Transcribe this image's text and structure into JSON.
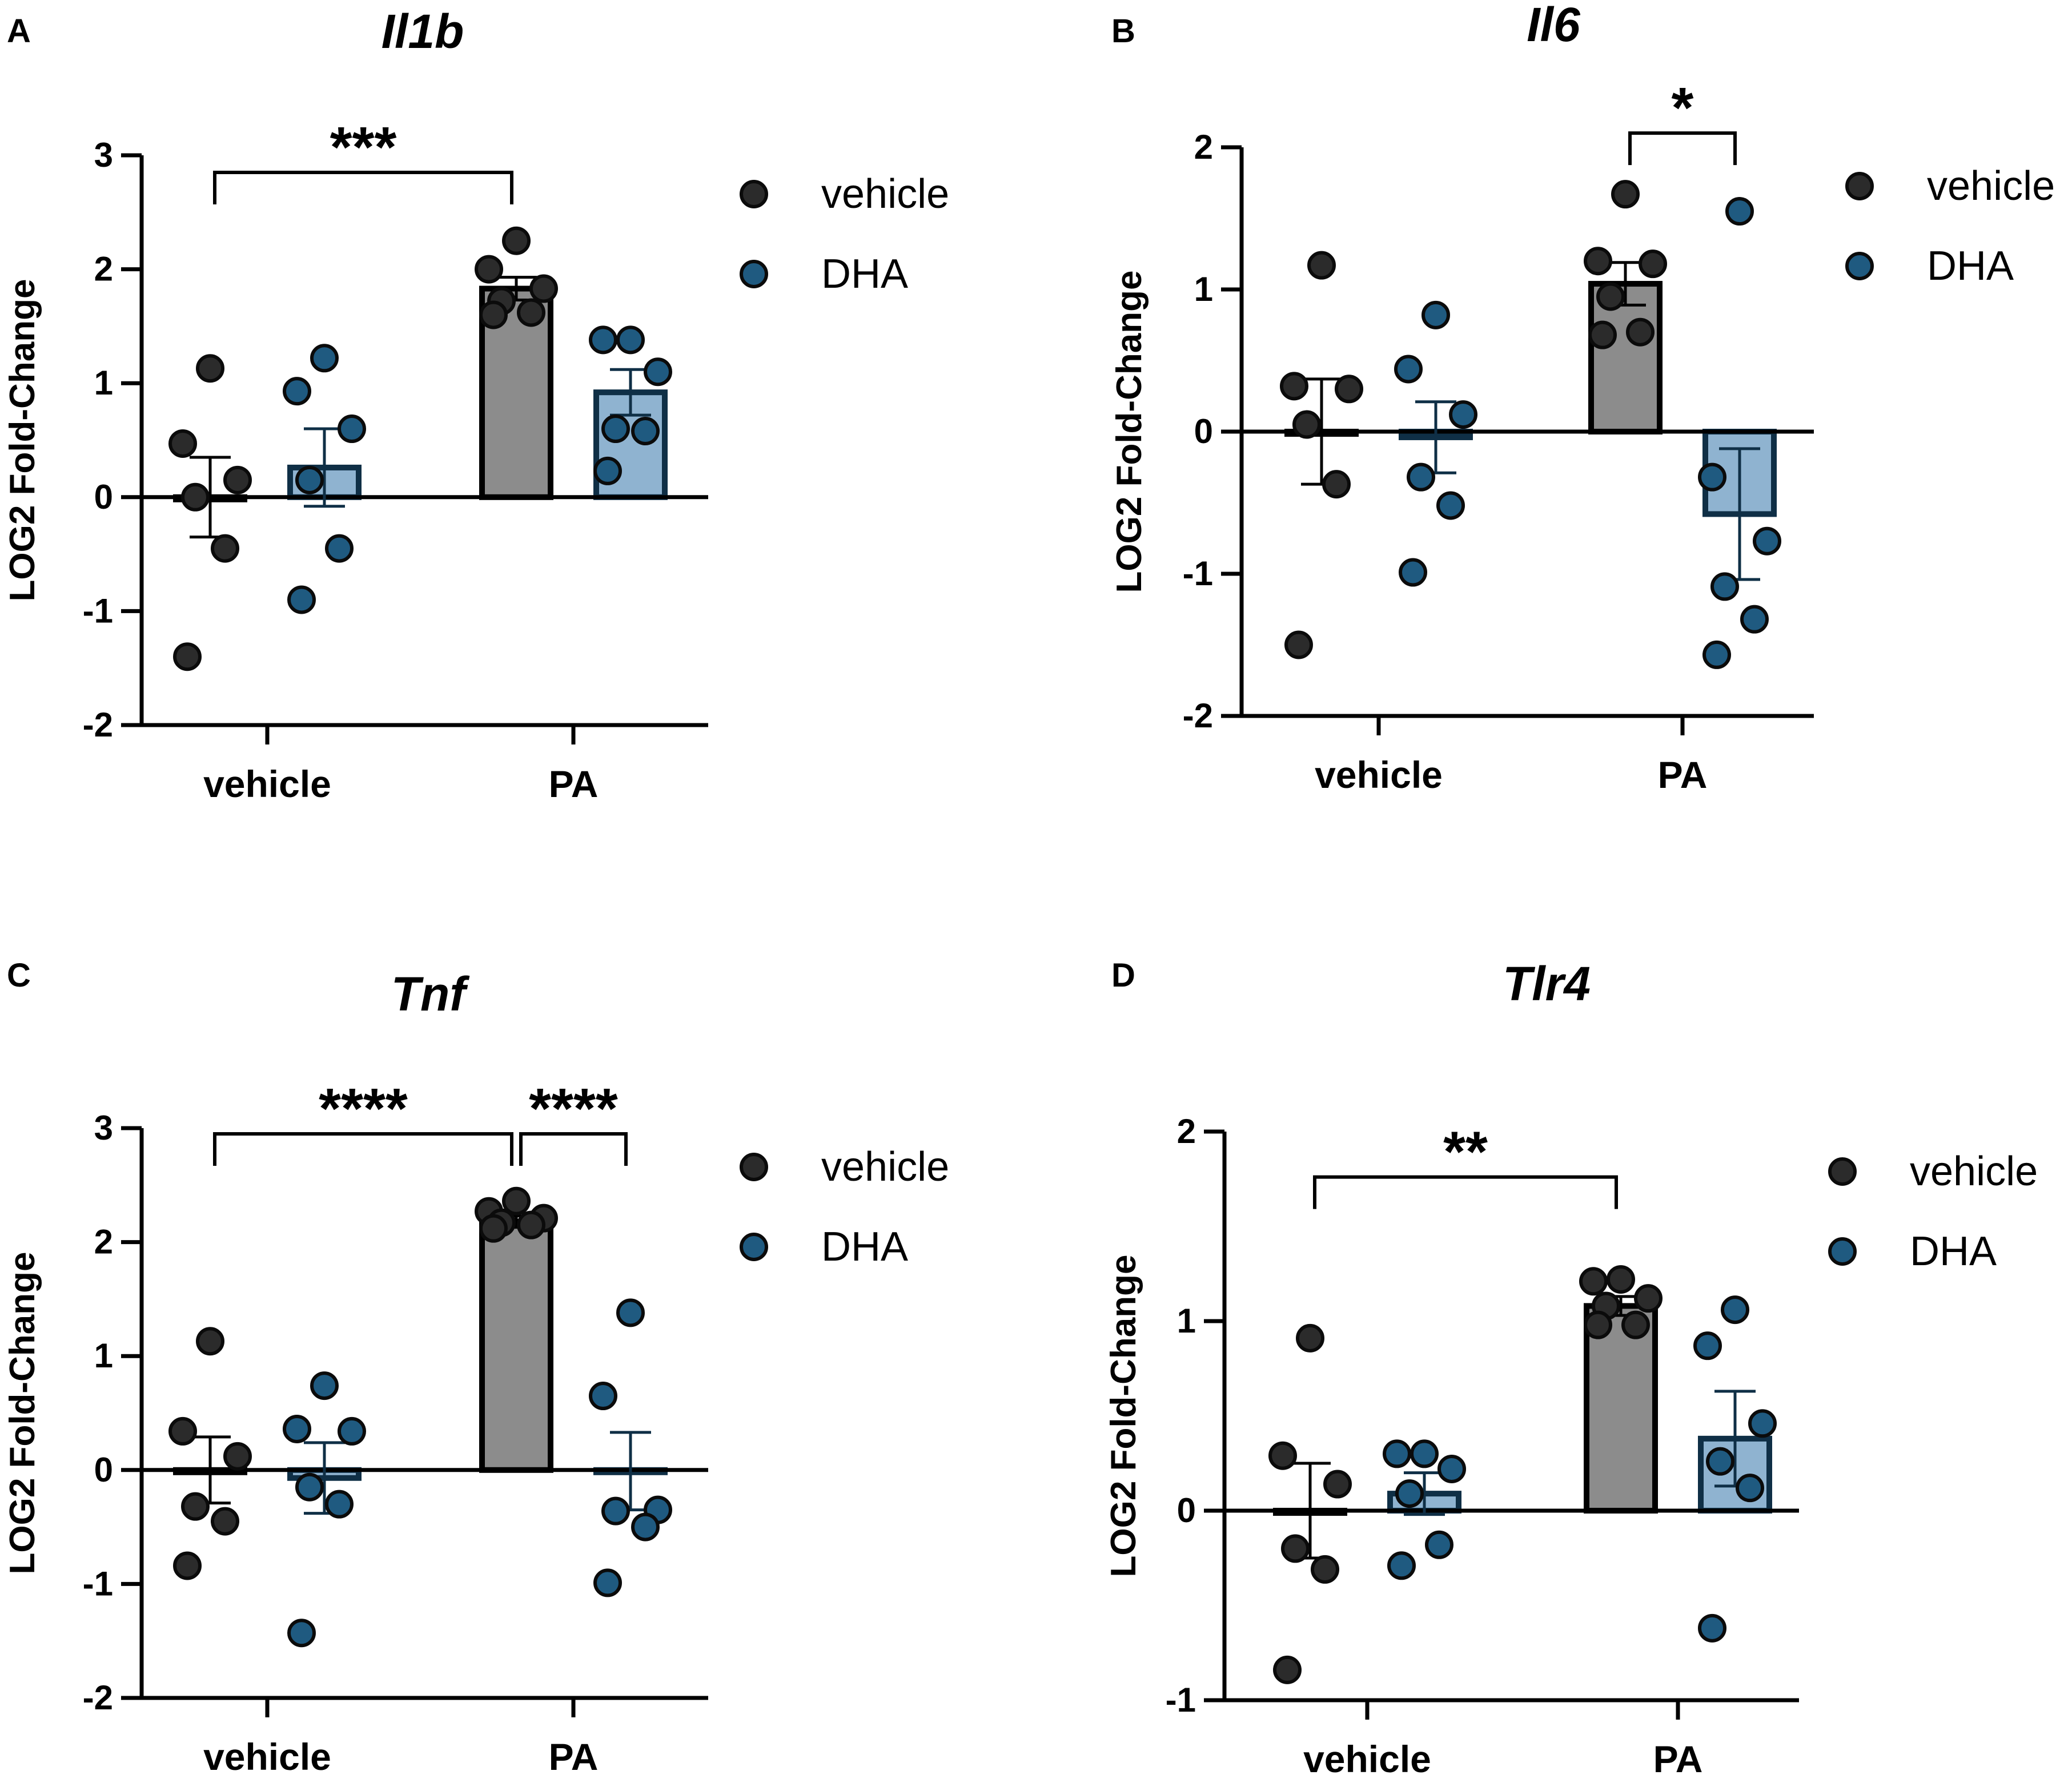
{
  "figure": {
    "background": "#ffffff"
  },
  "colors": {
    "vehicle_bar": "#8c8c8c",
    "vehicle_dot": "#2b2b2b",
    "dha_bar": "#8fb3d0",
    "dha_dot": "#1f5a80",
    "dha_edge": "#0f2f46",
    "axis": "#000000"
  },
  "legend": {
    "items": [
      "vehicle",
      "DHA"
    ]
  },
  "chart_data": [
    {
      "type": "bar",
      "panel_label": "A",
      "title": "Il1b",
      "xlabel": "",
      "ylabel": "LOG2 Fold-Change",
      "ylim": [
        -2,
        3
      ],
      "yticks": [
        -2,
        -1,
        0,
        1,
        2,
        3
      ],
      "categories": [
        "vehicle",
        "PA"
      ],
      "legend": [
        "vehicle",
        "DHA"
      ],
      "series": [
        {
          "name": "vehicle",
          "values": [
            0,
            1.83
          ],
          "errors": [
            0.35,
            0.1
          ],
          "points": [
            [
              1.13,
              0.47,
              0.15,
              0,
              -0.45,
              -1.4
            ],
            [
              2.25,
              2,
              1.83,
              1.72,
              1.62,
              1.6
            ]
          ]
        },
        {
          "name": "DHA",
          "values": [
            0.26,
            0.92
          ],
          "errors": [
            0.34,
            0.2
          ],
          "points": [
            [
              1.22,
              0.93,
              0.6,
              0.15,
              -0.45,
              -0.9
            ],
            [
              1.38,
              1.38,
              1.1,
              0.6,
              0.58,
              0.23
            ]
          ]
        }
      ],
      "annotations": [
        {
          "text": "***",
          "from": {
            "category": 0,
            "series": 0
          },
          "to": {
            "category": 1,
            "series": 0
          },
          "at": 2.85
        }
      ]
    },
    {
      "type": "bar",
      "panel_label": "B",
      "title": "Il6",
      "xlabel": "",
      "ylabel": "LOG2 Fold-Change",
      "ylim": [
        -2,
        2
      ],
      "yticks": [
        -2,
        -1,
        0,
        1,
        2
      ],
      "categories": [
        "vehicle",
        "PA"
      ],
      "legend": [
        "vehicle",
        "DHA"
      ],
      "series": [
        {
          "name": "vehicle",
          "values": [
            0,
            1.04
          ],
          "errors": [
            0.37,
            0.15
          ],
          "points": [
            [
              1.17,
              0.32,
              0.3,
              0.05,
              -0.37,
              -1.5
            ],
            [
              1.67,
              1.2,
              1.18,
              0.95,
              0.7,
              0.68
            ]
          ]
        },
        {
          "name": "DHA",
          "values": [
            -0.04,
            -0.58
          ],
          "errors": [
            0.25,
            0.46
          ],
          "points": [
            [
              0.82,
              0.44,
              0.12,
              -0.32,
              -0.52,
              -0.99
            ],
            [
              1.55,
              -0.32,
              -0.77,
              -1.09,
              -1.32,
              -1.57
            ]
          ]
        }
      ],
      "annotations": [
        {
          "text": "*",
          "from": {
            "category": 1,
            "series": 0
          },
          "to": {
            "category": 1,
            "series": 1
          },
          "at": 2.1
        }
      ]
    },
    {
      "type": "bar",
      "panel_label": "C",
      "title": "Tnf",
      "xlabel": "",
      "ylabel": "LOG2 Fold-Change",
      "ylim": [
        -2,
        3
      ],
      "yticks": [
        -2,
        -1,
        0,
        1,
        2,
        3
      ],
      "categories": [
        "vehicle",
        "PA"
      ],
      "legend": [
        "vehicle",
        "DHA"
      ],
      "series": [
        {
          "name": "vehicle",
          "values": [
            0,
            2.18
          ],
          "errors": [
            0.29,
            0.05
          ],
          "points": [
            [
              1.13,
              0.34,
              0.12,
              -0.32,
              -0.45,
              -0.84
            ],
            [
              2.36,
              2.27,
              2.21,
              2.17,
              2.15,
              2.12
            ]
          ]
        },
        {
          "name": "DHA",
          "values": [
            -0.07,
            -0.01
          ],
          "errors": [
            0.31,
            0.34
          ],
          "points": [
            [
              0.74,
              0.36,
              0.34,
              -0.15,
              -0.3,
              -1.43
            ],
            [
              1.38,
              0.65,
              -0.35,
              -0.36,
              -0.5,
              -0.99
            ]
          ]
        }
      ],
      "annotations": [
        {
          "text": "****",
          "from": {
            "category": 0,
            "series": 0
          },
          "to": {
            "category": 1,
            "series": 0
          },
          "at": 2.95
        },
        {
          "text": "****",
          "from": {
            "category": 1,
            "series": 0
          },
          "to": {
            "category": 1,
            "series": 1
          },
          "at": 2.95
        }
      ]
    },
    {
      "type": "bar",
      "panel_label": "D",
      "title": "Tlr4",
      "xlabel": "",
      "ylabel": "LOG2 Fold-Change",
      "ylim": [
        -1,
        2
      ],
      "yticks": [
        -1,
        0,
        1,
        2
      ],
      "categories": [
        "vehicle",
        "PA"
      ],
      "legend": [
        "vehicle",
        "DHA"
      ],
      "series": [
        {
          "name": "vehicle",
          "values": [
            0,
            1.08
          ],
          "errors": [
            0.25,
            0.05
          ],
          "points": [
            [
              0.91,
              0.29,
              0.14,
              -0.2,
              -0.31,
              -0.84
            ],
            [
              1.22,
              1.21,
              1.12,
              1.08,
              0.98,
              0.98
            ]
          ]
        },
        {
          "name": "DHA",
          "values": [
            0.09,
            0.38
          ],
          "errors": [
            0.11,
            0.25
          ],
          "points": [
            [
              0.3,
              0.3,
              0.22,
              0.09,
              -0.18,
              -0.29
            ],
            [
              1.06,
              0.87,
              0.46,
              0.26,
              0.12,
              -0.62
            ]
          ]
        }
      ],
      "annotations": [
        {
          "text": "**",
          "from": {
            "category": 0,
            "series": 0
          },
          "to": {
            "category": 1,
            "series": 0
          },
          "at": 1.76
        }
      ]
    }
  ]
}
